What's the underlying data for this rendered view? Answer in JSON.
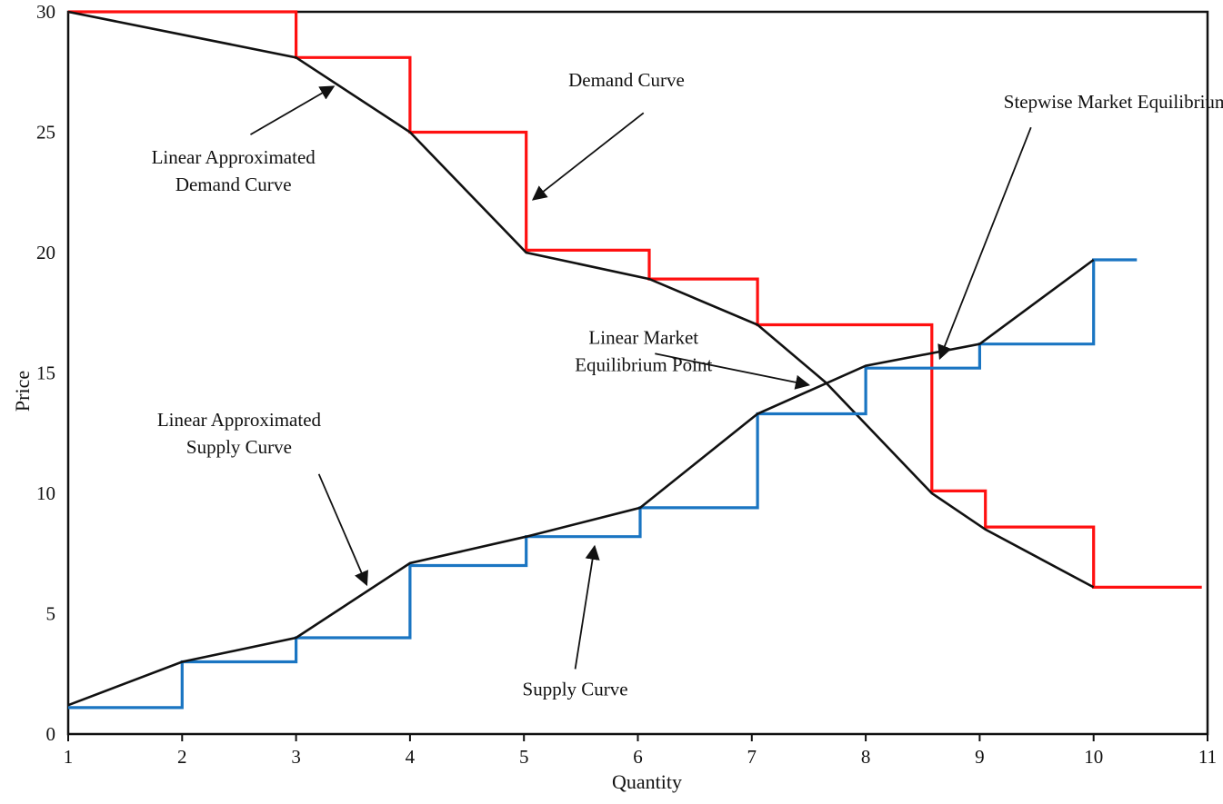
{
  "chart_data": {
    "type": "line",
    "title": "",
    "xlabel": "Quantity",
    "ylabel": "Price",
    "xlim": [
      1,
      11
    ],
    "ylim": [
      0,
      30
    ],
    "x_ticks": [
      1,
      2,
      3,
      4,
      5,
      6,
      7,
      8,
      9,
      10,
      11
    ],
    "y_ticks": [
      0,
      5,
      10,
      15,
      20,
      25,
      30
    ],
    "grid": false,
    "legend": "none",
    "series": [
      {
        "key": "demand-step",
        "style": "step",
        "color": "#ff1010",
        "points": [
          [
            1,
            30
          ],
          [
            3,
            30
          ],
          [
            3,
            28.1
          ],
          [
            4,
            28.1
          ],
          [
            4,
            25
          ],
          [
            5.02,
            25
          ],
          [
            5.02,
            20.1
          ],
          [
            6.1,
            20.1
          ],
          [
            6.1,
            18.9
          ],
          [
            7.05,
            18.9
          ],
          [
            7.05,
            17
          ],
          [
            8.58,
            17
          ],
          [
            8.58,
            10.1
          ],
          [
            9.05,
            10.1
          ],
          [
            9.05,
            8.6
          ],
          [
            10,
            8.6
          ],
          [
            10,
            6.1
          ],
          [
            10.95,
            6.1
          ]
        ]
      },
      {
        "key": "demand-linear",
        "style": "line",
        "color": "#111111",
        "points": [
          [
            1,
            30
          ],
          [
            3,
            28.1
          ],
          [
            4,
            25
          ],
          [
            5.02,
            20
          ],
          [
            6.1,
            18.9
          ],
          [
            7.05,
            17
          ],
          [
            7.65,
            14.6
          ],
          [
            8.58,
            10
          ],
          [
            9.05,
            8.5
          ],
          [
            10,
            6.1
          ]
        ]
      },
      {
        "key": "supply-step",
        "style": "step",
        "color": "#1a75c2",
        "points": [
          [
            1,
            1.1
          ],
          [
            2,
            1.1
          ],
          [
            2,
            3
          ],
          [
            3,
            3
          ],
          [
            3,
            4
          ],
          [
            4,
            4
          ],
          [
            4,
            7
          ],
          [
            5.02,
            7
          ],
          [
            5.02,
            8.2
          ],
          [
            6.02,
            8.2
          ],
          [
            6.02,
            9.4
          ],
          [
            7.05,
            9.4
          ],
          [
            7.05,
            13.3
          ],
          [
            8,
            13.3
          ],
          [
            8,
            15.2
          ],
          [
            9,
            15.2
          ],
          [
            9,
            16.2
          ],
          [
            10,
            16.2
          ],
          [
            10,
            19.7
          ],
          [
            10.38,
            19.7
          ]
        ]
      },
      {
        "key": "supply-linear",
        "style": "line",
        "color": "#111111",
        "points": [
          [
            1,
            1.2
          ],
          [
            2,
            3
          ],
          [
            3,
            4
          ],
          [
            4,
            7.1
          ],
          [
            5.02,
            8.2
          ],
          [
            6.02,
            9.4
          ],
          [
            7.05,
            13.3
          ],
          [
            8,
            15.3
          ],
          [
            9,
            16.2
          ],
          [
            10,
            19.7
          ]
        ]
      }
    ],
    "annotations": [
      {
        "key": "demand-curve",
        "lines": [
          "Demand Curve"
        ],
        "text_at": [
          5.9,
          26.9
        ],
        "arrow_from": [
          6.05,
          25.8
        ],
        "arrow_to": [
          5.08,
          22.2
        ]
      },
      {
        "key": "linear-demand",
        "lines": [
          "Linear Approximated",
          "Demand Curve"
        ],
        "text_at": [
          2.45,
          23.7
        ],
        "arrow_from": [
          2.6,
          24.9
        ],
        "arrow_to": [
          3.33,
          26.9
        ]
      },
      {
        "key": "stepwise-eq",
        "lines": [
          "Stepwise Market Equilibrium Point"
        ],
        "text_at": [
          10.4,
          26
        ],
        "arrow_from": [
          9.45,
          25.2
        ],
        "arrow_to": [
          8.65,
          15.6
        ]
      },
      {
        "key": "linear-eq",
        "lines": [
          "Linear Market",
          "Equilibrium Point"
        ],
        "text_at": [
          6.05,
          16.2
        ],
        "arrow_from": [
          6.15,
          15.8
        ],
        "arrow_to": [
          7.5,
          14.5
        ]
      },
      {
        "key": "linear-supply",
        "lines": [
          "Linear Approximated",
          "Supply Curve"
        ],
        "text_at": [
          2.5,
          12.8
        ],
        "arrow_from": [
          3.2,
          10.8
        ],
        "arrow_to": [
          3.62,
          6.2
        ]
      },
      {
        "key": "supply-curve",
        "lines": [
          "Supply Curve"
        ],
        "text_at": [
          5.45,
          1.6
        ],
        "arrow_from": [
          5.45,
          2.7
        ],
        "arrow_to": [
          5.62,
          7.8
        ]
      }
    ]
  }
}
